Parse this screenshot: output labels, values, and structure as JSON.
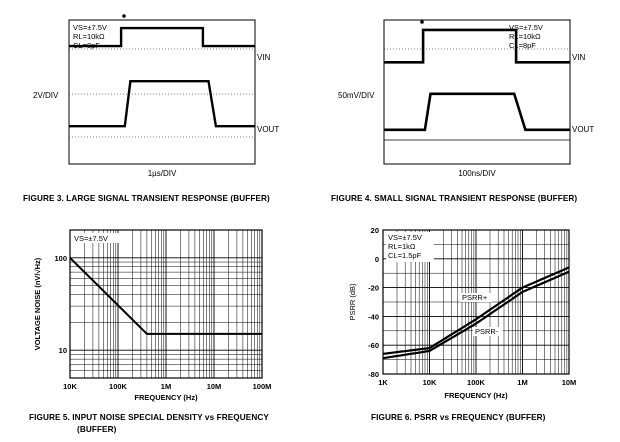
{
  "figures": [
    {
      "caption": "FIGURE 3.  LARGE SIGNAL TRANSIENT RESPONSE (BUFFER)",
      "xdiv": "1µs/DIV",
      "ydiv": "2V/DIV",
      "cond": [
        "VS=±7.5V",
        "RL=10kΩ",
        "CL=8pF"
      ],
      "vin": "VIN",
      "vout": "VOUT"
    },
    {
      "caption": "FIGURE 4.  SMALL SIGNAL TRANSIENT RESPONSE (BUFFER)",
      "xdiv": "100ns/DIV",
      "ydiv": "50mV/DIV",
      "cond": [
        "VS=±7.5V",
        "RL=10kΩ",
        "CL=8pF"
      ],
      "vin": "VIN",
      "vout": "VOUT"
    },
    {
      "caption_line1": "FIGURE 5.  INPUT NOISE SPECIAL DENSITY vs FREQUENCY",
      "caption_line2": "(BUFFER)",
      "cond": [
        "VS=±7.5V"
      ]
    },
    {
      "caption": "FIGURE 6.  PSRR vs FREQUENCY (BUFFER)",
      "cond": [
        "VS=±7.5V",
        "RL=1kΩ",
        "CL=1.5pF"
      ]
    }
  ],
  "chart_data": [
    {
      "type": "line",
      "title": "LARGE SIGNAL TRANSIENT RESPONSE (BUFFER)",
      "xlabel": "1µs/DIV",
      "ylabel": "2V/DIV",
      "x_divisions": 10,
      "y_divisions": 8,
      "series": [
        {
          "name": "VIN",
          "x": [
            0,
            2.8,
            2.8,
            7.2,
            7.2,
            10
          ],
          "y": [
            1.45,
            1.45,
            0.45,
            0.45,
            1.45,
            1.45
          ]
        },
        {
          "name": "VOUT",
          "x": [
            0,
            3.0,
            3.3,
            7.5,
            7.9,
            10
          ],
          "y": [
            5.9,
            5.9,
            3.4,
            3.4,
            5.9,
            5.9
          ]
        }
      ]
    },
    {
      "type": "line",
      "title": "SMALL SIGNAL TRANSIENT RESPONSE (BUFFER)",
      "xlabel": "100ns/DIV",
      "ylabel": "50mV/DIV",
      "x_divisions": 10,
      "y_divisions": 8,
      "series": [
        {
          "name": "VIN",
          "x": [
            0,
            2.1,
            2.1,
            7.1,
            7.1,
            10
          ],
          "y": [
            2.35,
            2.35,
            0.55,
            0.55,
            2.35,
            2.35
          ]
        },
        {
          "name": "VOUT",
          "x": [
            0,
            2.2,
            2.5,
            7.0,
            7.6,
            10
          ],
          "y": [
            6.1,
            6.1,
            4.1,
            4.1,
            6.1,
            6.1
          ]
        }
      ]
    },
    {
      "type": "line",
      "title": "INPUT NOISE SPECIAL DENSITY vs FREQUENCY (BUFFER)",
      "xlabel": "FREQUENCY (Hz)",
      "ylabel": "VOLTAGE NOISE (nV/√Hz)",
      "xscale": "log",
      "yscale": "log",
      "xlim": [
        10000,
        100000000
      ],
      "ylim": [
        5,
        200
      ],
      "xticks": [
        "10K",
        "100K",
        "1M",
        "10M",
        "100M"
      ],
      "yticks": [
        "100",
        "10"
      ],
      "grid": true,
      "series": [
        {
          "x": [
            10000,
            400000,
            100000000
          ],
          "y": [
            100,
            15,
            15
          ]
        }
      ]
    },
    {
      "type": "line",
      "title": "PSRR vs FREQUENCY (BUFFER)",
      "xlabel": "FREQUENCY (Hz)",
      "ylabel": "PSRR (dB)",
      "xscale": "log",
      "xlim": [
        1000,
        10000000
      ],
      "ylim": [
        -80,
        20
      ],
      "xticks": [
        "1K",
        "10K",
        "100K",
        "1M",
        "10M"
      ],
      "yticks": [
        "20",
        "0",
        "-20",
        "-40",
        "-60",
        "-80"
      ],
      "grid": true,
      "series": [
        {
          "name": "PSRR+",
          "x": [
            1000,
            10000,
            100000,
            1000000,
            10000000
          ],
          "y": [
            -66,
            -62,
            -42,
            -20,
            -6
          ]
        },
        {
          "name": "PSRR-",
          "x": [
            1000,
            10000,
            100000,
            1000000,
            10000000
          ],
          "y": [
            -69,
            -64,
            -45,
            -23,
            -9
          ]
        }
      ]
    }
  ]
}
